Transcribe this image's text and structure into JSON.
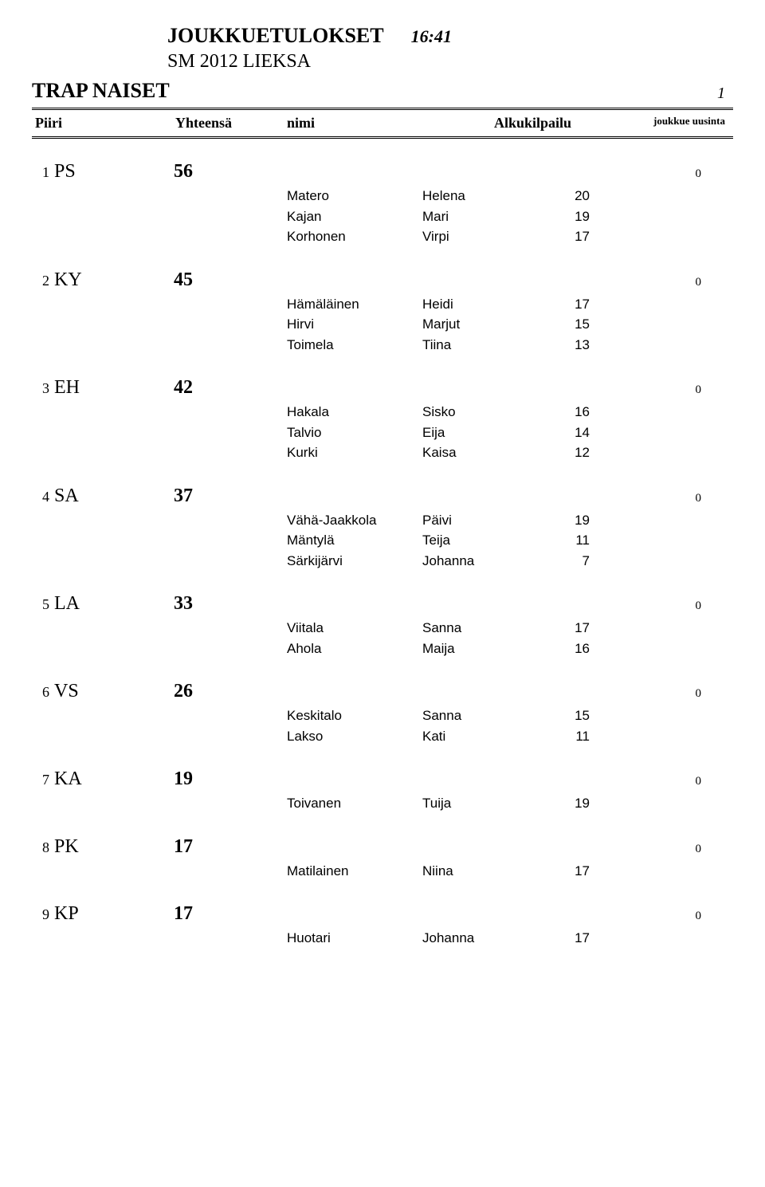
{
  "header": {
    "title": "JOUKKUETULOKSET",
    "time": "16:41",
    "subtitle": "SM 2012 LIEKSA"
  },
  "category": "TRAP NAISET",
  "page_number": "1",
  "columns": {
    "piiri": "Piiri",
    "yhteensa": "Yhteensä",
    "nimi": "nimi",
    "alkukilpailu": "Alkukilpailu",
    "joukkue_uusinta": "joukkue uusinta"
  },
  "teams": [
    {
      "rank": "1",
      "piiri": "PS",
      "total": "56",
      "uusinta": "0",
      "members": [
        {
          "last": "Matero",
          "first": "Helena",
          "score": "20"
        },
        {
          "last": "Kajan",
          "first": "Mari",
          "score": "19"
        },
        {
          "last": "Korhonen",
          "first": "Virpi",
          "score": "17"
        }
      ]
    },
    {
      "rank": "2",
      "piiri": "KY",
      "total": "45",
      "uusinta": "0",
      "members": [
        {
          "last": "Hämäläinen",
          "first": "Heidi",
          "score": "17"
        },
        {
          "last": "Hirvi",
          "first": "Marjut",
          "score": "15"
        },
        {
          "last": "Toimela",
          "first": "Tiina",
          "score": "13"
        }
      ]
    },
    {
      "rank": "3",
      "piiri": "EH",
      "total": "42",
      "uusinta": "0",
      "members": [
        {
          "last": "Hakala",
          "first": "Sisko",
          "score": "16"
        },
        {
          "last": "Talvio",
          "first": "Eija",
          "score": "14"
        },
        {
          "last": "Kurki",
          "first": "Kaisa",
          "score": "12"
        }
      ]
    },
    {
      "rank": "4",
      "piiri": "SA",
      "total": "37",
      "uusinta": "0",
      "members": [
        {
          "last": "Vähä-Jaakkola",
          "first": "Päivi",
          "score": "19"
        },
        {
          "last": "Mäntylä",
          "first": "Teija",
          "score": "11"
        },
        {
          "last": "Särkijärvi",
          "first": "Johanna",
          "score": "7"
        }
      ]
    },
    {
      "rank": "5",
      "piiri": "LA",
      "total": "33",
      "uusinta": "0",
      "members": [
        {
          "last": "Viitala",
          "first": "Sanna",
          "score": "17"
        },
        {
          "last": "Ahola",
          "first": "Maija",
          "score": "16"
        }
      ]
    },
    {
      "rank": "6",
      "piiri": "VS",
      "total": "26",
      "uusinta": "0",
      "members": [
        {
          "last": "Keskitalo",
          "first": "Sanna",
          "score": "15"
        },
        {
          "last": "Lakso",
          "first": "Kati",
          "score": "11"
        }
      ]
    },
    {
      "rank": "7",
      "piiri": "KA",
      "total": "19",
      "uusinta": "0",
      "members": [
        {
          "last": "Toivanen",
          "first": "Tuija",
          "score": "19"
        }
      ]
    },
    {
      "rank": "8",
      "piiri": "PK",
      "total": "17",
      "uusinta": "0",
      "members": [
        {
          "last": "Matilainen",
          "first": "Niina",
          "score": "17"
        }
      ]
    },
    {
      "rank": "9",
      "piiri": "KP",
      "total": "17",
      "uusinta": "0",
      "members": [
        {
          "last": "Huotari",
          "first": "Johanna",
          "score": "17"
        }
      ]
    }
  ]
}
